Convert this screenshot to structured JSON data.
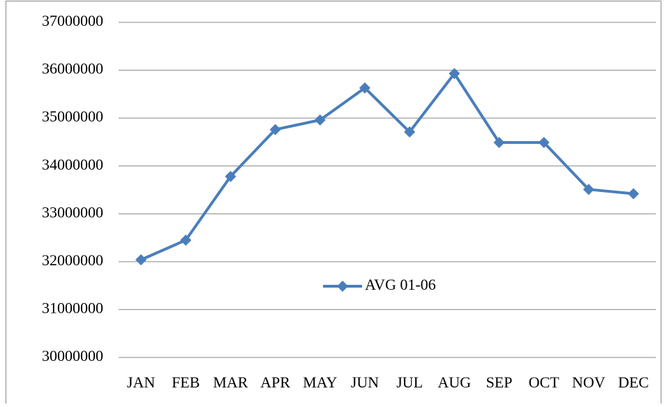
{
  "chart_data": {
    "type": "line",
    "categories": [
      "JAN",
      "FEB",
      "MAR",
      "APR",
      "MAY",
      "JUN",
      "JUL",
      "AUG",
      "SEP",
      "OCT",
      "NOV",
      "DEC"
    ],
    "series": [
      {
        "name": "AVG 01-06",
        "color": "#4a7ebb",
        "values": [
          32040000,
          32450000,
          33780000,
          34760000,
          34960000,
          35630000,
          34710000,
          35930000,
          34490000,
          34490000,
          33510000,
          33420000
        ]
      }
    ],
    "ylim": [
      30000000,
      37000000
    ],
    "yticks": [
      30000000,
      31000000,
      32000000,
      33000000,
      34000000,
      35000000,
      36000000,
      37000000
    ],
    "grid": true,
    "legend": "center"
  }
}
